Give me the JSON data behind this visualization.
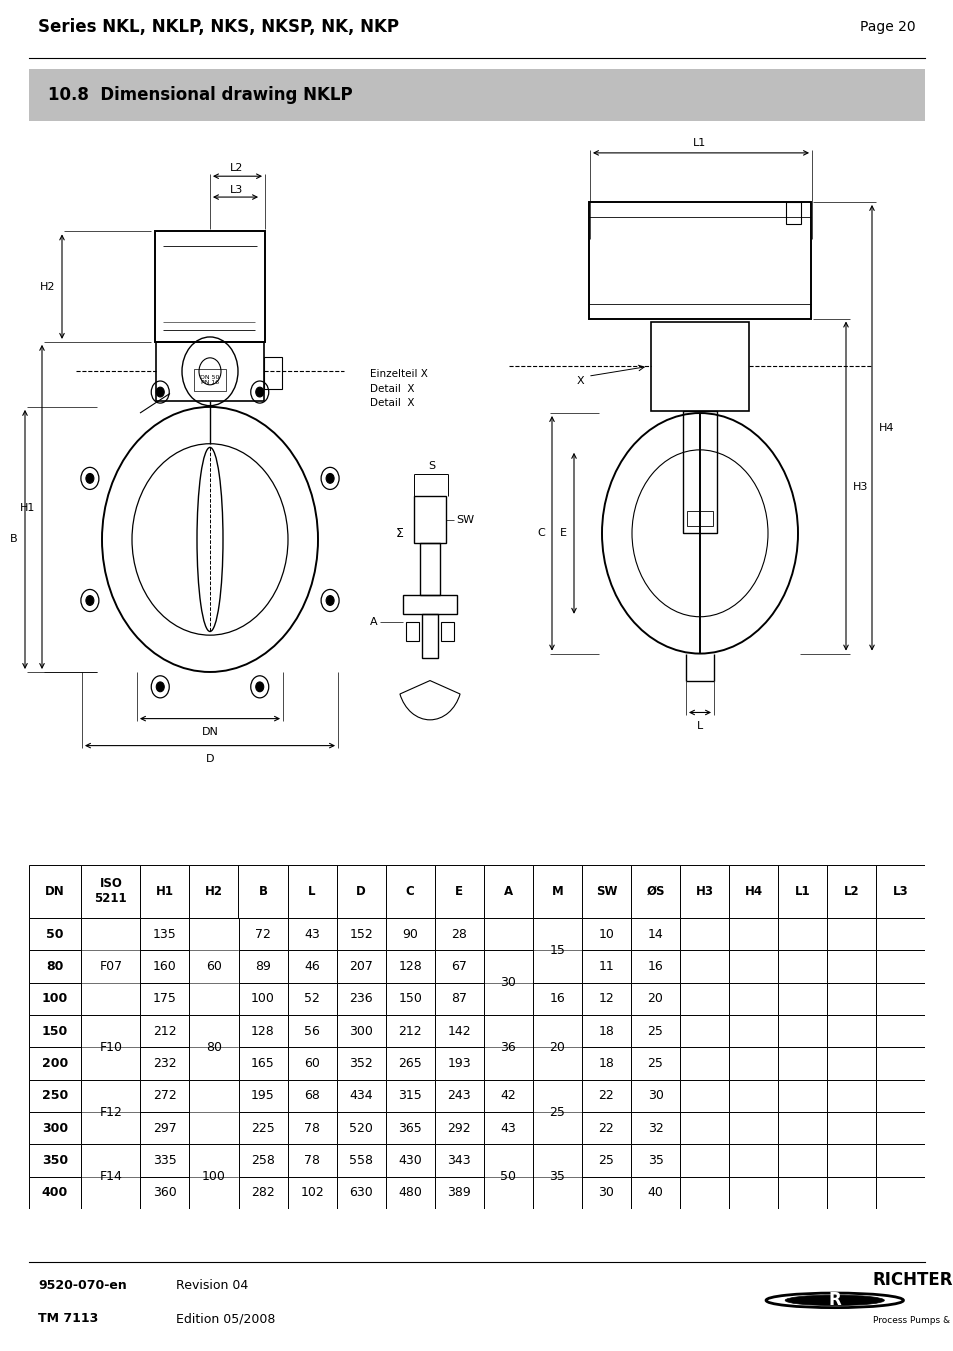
{
  "title": "Series NKL, NKLP, NKS, NKSP, NK, NKP",
  "page": "Page 20",
  "section_title": "10.8  Dimensional drawing NKLP",
  "footer_left_line1": "9520-070-en",
  "footer_left_line2": "TM 7113",
  "footer_right_line1": "Revision 04",
  "footer_right_line2": "Edition 05/2008",
  "col_labels": [
    "DN",
    "ISO\n5211",
    "H1",
    "H2",
    "B",
    "L",
    "D",
    "C",
    "E",
    "A",
    "M",
    "SW",
    "ØS",
    "H3",
    "H4",
    "L1",
    "L2",
    "L3"
  ],
  "rows_data": [
    [
      "50",
      "",
      "135",
      "",
      "72",
      "43",
      "152",
      "90",
      "28",
      "",
      "",
      "10",
      "14",
      "",
      "",
      "",
      "",
      ""
    ],
    [
      "80",
      "F07",
      "160",
      "60",
      "89",
      "46",
      "207",
      "128",
      "67",
      "30",
      "",
      "11",
      "16",
      "",
      "",
      "",
      "",
      ""
    ],
    [
      "100",
      "",
      "175",
      "",
      "100",
      "52",
      "236",
      "150",
      "87",
      "",
      "",
      "12",
      "20",
      "",
      "",
      "",
      "",
      ""
    ],
    [
      "150",
      "F10",
      "212",
      "",
      "128",
      "56",
      "300",
      "212",
      "142",
      "36",
      "20",
      "18",
      "25",
      "",
      "",
      "",
      "",
      ""
    ],
    [
      "200",
      "",
      "232",
      "80",
      "165",
      "60",
      "352",
      "265",
      "193",
      "36",
      "20",
      "18",
      "25",
      "",
      "",
      "",
      "",
      ""
    ],
    [
      "250",
      "F12",
      "272",
      "",
      "195",
      "68",
      "434",
      "315",
      "243",
      "42",
      "",
      "22",
      "30",
      "",
      "",
      "",
      "",
      ""
    ],
    [
      "300",
      "",
      "297",
      "",
      "225",
      "78",
      "520",
      "365",
      "292",
      "43",
      "",
      "22",
      "32",
      "",
      "",
      "",
      "",
      ""
    ],
    [
      "350",
      "F14",
      "335",
      "100",
      "258",
      "78",
      "558",
      "430",
      "343",
      "50",
      "35",
      "25",
      "35",
      "",
      "",
      "",
      "",
      ""
    ],
    [
      "400",
      "",
      "360",
      "",
      "282",
      "102",
      "630",
      "480",
      "389",
      "50",
      "35",
      "30",
      "40",
      "",
      "",
      "",
      "",
      ""
    ]
  ]
}
